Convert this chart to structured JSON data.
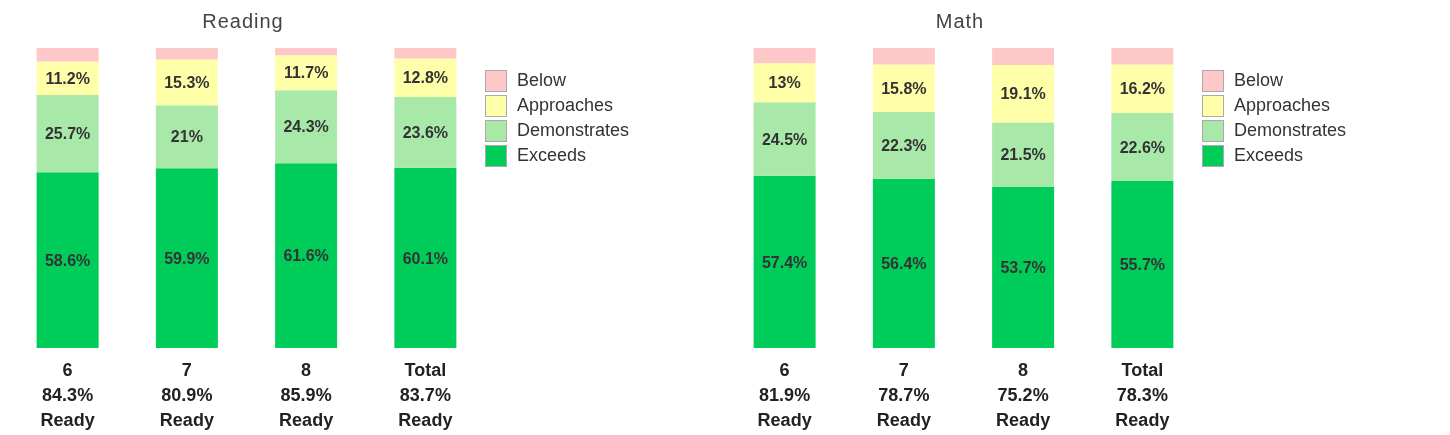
{
  "chart_data": [
    {
      "type": "bar",
      "title": "Reading",
      "stacked": true,
      "categories": [
        "6\n84.3%\nReady",
        "7\n80.9%\nReady",
        "8\n85.9%\nReady",
        "Total\n83.7%\nReady"
      ],
      "ylim": [
        0,
        100
      ],
      "tick_labels": "x",
      "legend": "right",
      "series": [
        {
          "name": "Exceeds",
          "color": "#00cc5a",
          "values": [
            58.6,
            59.9,
            61.6,
            60.1
          ],
          "value_labels": [
            "58.6%",
            "59.9%",
            "61.6%",
            "60.1%"
          ]
        },
        {
          "name": "Demonstrates",
          "color": "#a8e8a8",
          "values": [
            25.7,
            21,
            24.3,
            23.6
          ],
          "value_labels": [
            "25.7%",
            "21%",
            "24.3%",
            "23.6%"
          ]
        },
        {
          "name": "Approaches",
          "color": "#ffffaa",
          "values": [
            11.2,
            15.3,
            11.7,
            12.8
          ],
          "value_labels": [
            "11.2%",
            "15.3%",
            "11.7%",
            "12.8%"
          ]
        },
        {
          "name": "Below",
          "color": "#ffc8c8",
          "values": [
            4.5,
            3.8,
            2.4,
            3.5
          ],
          "value_labels": [
            null,
            null,
            null,
            null
          ]
        }
      ]
    },
    {
      "type": "bar",
      "title": "Math",
      "stacked": true,
      "categories": [
        "6\n81.9%\nReady",
        "7\n78.7%\nReady",
        "8\n75.2%\nReady",
        "Total\n78.3%\nReady"
      ],
      "ylim": [
        0,
        100
      ],
      "tick_labels": "x",
      "legend": "right",
      "series": [
        {
          "name": "Exceeds",
          "color": "#00cc5a",
          "values": [
            57.4,
            56.4,
            53.7,
            55.7
          ],
          "value_labels": [
            "57.4%",
            "56.4%",
            "53.7%",
            "55.7%"
          ]
        },
        {
          "name": "Demonstrates",
          "color": "#a8e8a8",
          "values": [
            24.5,
            22.3,
            21.5,
            22.6
          ],
          "value_labels": [
            "24.5%",
            "22.3%",
            "21.5%",
            "22.6%"
          ]
        },
        {
          "name": "Approaches",
          "color": "#ffffaa",
          "values": [
            13,
            15.8,
            19.1,
            16.2
          ],
          "value_labels": [
            "13%",
            "15.8%",
            "19.1%",
            "16.2%"
          ]
        },
        {
          "name": "Below",
          "color": "#ffc8c8",
          "values": [
            5.1,
            5.5,
            5.7,
            5.5
          ],
          "value_labels": [
            null,
            null,
            null,
            null
          ]
        }
      ]
    }
  ]
}
